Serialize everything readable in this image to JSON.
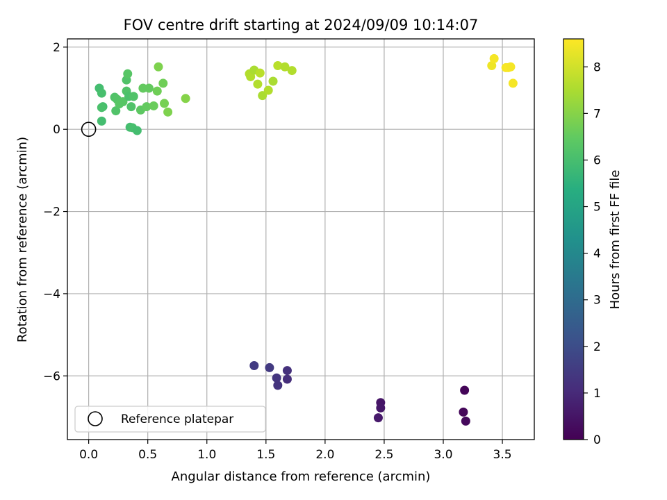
{
  "chart_data": {
    "type": "scatter",
    "title": "FOV centre drift starting at 2024/09/09 10:14:07",
    "xlabel": "Angular distance from reference (arcmin)",
    "ylabel": "Rotation from reference (arcmin)",
    "xlim": [
      -0.18,
      3.77
    ],
    "ylim": [
      -7.55,
      2.2
    ],
    "grid": true,
    "xticks": [
      0.0,
      0.5,
      1.0,
      1.5,
      2.0,
      2.5,
      3.0,
      3.5
    ],
    "xtick_labels": [
      "0.0",
      "0.5",
      "1.0",
      "1.5",
      "2.0",
      "2.5",
      "3.0",
      "3.5"
    ],
    "yticks": [
      2,
      0,
      -2,
      -4,
      -6
    ],
    "ytick_labels": [
      "2",
      "0",
      "−2",
      "−4",
      "−6"
    ],
    "colorbar": {
      "label": "Hours from first FF file",
      "colormap": "viridis",
      "range": [
        0,
        8.6
      ],
      "ticks": [
        0,
        1,
        2,
        3,
        4,
        5,
        6,
        7,
        8
      ],
      "tick_labels": [
        "0",
        "1",
        "2",
        "3",
        "4",
        "5",
        "6",
        "7",
        "8"
      ]
    },
    "legend": {
      "placement": "lower-left",
      "entries": [
        {
          "label": "Reference platepar",
          "marker": "open-circle"
        }
      ]
    },
    "reference_point": {
      "x": 0.0,
      "y": 0.0
    },
    "points": [
      {
        "x": 3.18,
        "y": -6.35,
        "c": 0.1
      },
      {
        "x": 3.17,
        "y": -6.88,
        "c": 0.15
      },
      {
        "x": 3.19,
        "y": -7.1,
        "c": 0.2
      },
      {
        "x": 2.47,
        "y": -6.65,
        "c": 0.5
      },
      {
        "x": 2.47,
        "y": -6.78,
        "c": 0.55
      },
      {
        "x": 2.45,
        "y": -7.02,
        "c": 0.6
      },
      {
        "x": 1.4,
        "y": -5.75,
        "c": 1.5
      },
      {
        "x": 1.53,
        "y": -5.8,
        "c": 1.45
      },
      {
        "x": 1.59,
        "y": -6.05,
        "c": 1.35
      },
      {
        "x": 1.6,
        "y": -6.23,
        "c": 1.3
      },
      {
        "x": 1.68,
        "y": -5.87,
        "c": 1.2
      },
      {
        "x": 1.68,
        "y": -6.08,
        "c": 1.15
      },
      {
        "x": 0.09,
        "y": 1.0,
        "c": 6.0
      },
      {
        "x": 0.11,
        "y": 0.88,
        "c": 6.05
      },
      {
        "x": 0.12,
        "y": 0.55,
        "c": 6.0
      },
      {
        "x": 0.11,
        "y": 0.53,
        "c": 6.1
      },
      {
        "x": 0.11,
        "y": 0.2,
        "c": 6.0
      },
      {
        "x": 0.22,
        "y": 0.78,
        "c": 6.2
      },
      {
        "x": 0.24,
        "y": 0.73,
        "c": 6.25
      },
      {
        "x": 0.23,
        "y": 0.45,
        "c": 6.2
      },
      {
        "x": 0.26,
        "y": 0.62,
        "c": 6.3
      },
      {
        "x": 0.29,
        "y": 0.67,
        "c": 6.3
      },
      {
        "x": 0.32,
        "y": 1.2,
        "c": 6.2
      },
      {
        "x": 0.33,
        "y": 1.35,
        "c": 6.3
      },
      {
        "x": 0.32,
        "y": 0.93,
        "c": 6.2
      },
      {
        "x": 0.34,
        "y": 0.8,
        "c": 6.1
      },
      {
        "x": 0.38,
        "y": 0.8,
        "c": 6.2
      },
      {
        "x": 0.36,
        "y": 0.55,
        "c": 6.2
      },
      {
        "x": 0.35,
        "y": 0.05,
        "c": 6.0
      },
      {
        "x": 0.37,
        "y": 0.04,
        "c": 6.05
      },
      {
        "x": 0.41,
        "y": -0.03,
        "c": 6.0
      },
      {
        "x": 0.44,
        "y": 0.47,
        "c": 6.4
      },
      {
        "x": 0.46,
        "y": 1.0,
        "c": 6.5
      },
      {
        "x": 0.49,
        "y": 0.55,
        "c": 6.5
      },
      {
        "x": 0.51,
        "y": 1.0,
        "c": 6.5
      },
      {
        "x": 0.55,
        "y": 0.57,
        "c": 6.6
      },
      {
        "x": 0.58,
        "y": 0.93,
        "c": 6.7
      },
      {
        "x": 0.59,
        "y": 1.52,
        "c": 6.9
      },
      {
        "x": 0.63,
        "y": 1.12,
        "c": 6.7
      },
      {
        "x": 0.64,
        "y": 0.63,
        "c": 6.8
      },
      {
        "x": 0.67,
        "y": 0.42,
        "c": 6.9
      },
      {
        "x": 0.82,
        "y": 0.75,
        "c": 7.0
      },
      {
        "x": 1.36,
        "y": 1.35,
        "c": 7.6
      },
      {
        "x": 1.37,
        "y": 1.28,
        "c": 7.6
      },
      {
        "x": 1.4,
        "y": 1.44,
        "c": 7.5
      },
      {
        "x": 1.43,
        "y": 1.1,
        "c": 7.6
      },
      {
        "x": 1.45,
        "y": 1.37,
        "c": 7.7
      },
      {
        "x": 1.47,
        "y": 0.82,
        "c": 7.5
      },
      {
        "x": 1.52,
        "y": 0.95,
        "c": 7.6
      },
      {
        "x": 1.56,
        "y": 1.17,
        "c": 7.5
      },
      {
        "x": 1.6,
        "y": 1.55,
        "c": 7.7
      },
      {
        "x": 1.66,
        "y": 1.52,
        "c": 7.6
      },
      {
        "x": 1.72,
        "y": 1.43,
        "c": 7.6
      },
      {
        "x": 3.41,
        "y": 1.55,
        "c": 8.4
      },
      {
        "x": 3.43,
        "y": 1.72,
        "c": 8.5
      },
      {
        "x": 3.53,
        "y": 1.5,
        "c": 8.5
      },
      {
        "x": 3.55,
        "y": 1.5,
        "c": 8.55
      },
      {
        "x": 3.57,
        "y": 1.52,
        "c": 8.5
      },
      {
        "x": 3.59,
        "y": 1.12,
        "c": 8.5
      }
    ]
  }
}
